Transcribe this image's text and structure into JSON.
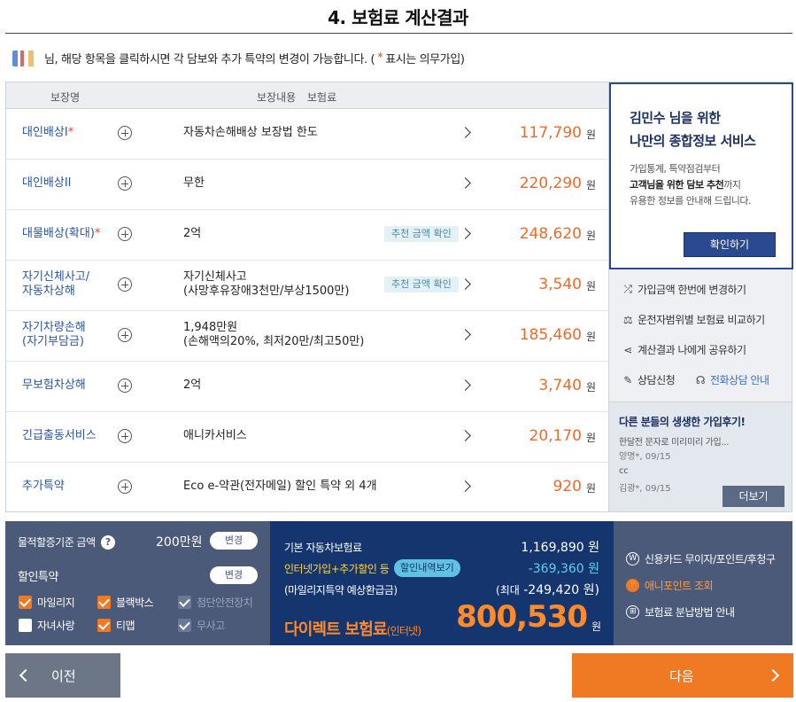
{
  "page": {
    "title": "4. 보험료 계산결과",
    "notice_prefix": "님, 해당 항목을 클릭하시면 각 담보와 추가 특약의 변경이 가능합니다. (",
    "notice_star": "*",
    "notice_suffix": "표시는 의무가입)"
  },
  "table": {
    "headers": {
      "name": "보장명",
      "coverage": "보장내용",
      "premium": "보험료"
    },
    "rows": [
      {
        "name": "대인배상I",
        "required": "*",
        "coverage": "자동차손해배상 보장법 한도",
        "coverage_sub": "",
        "badge": "",
        "premium": "117,790",
        "unit": "원"
      },
      {
        "name": "대인배상II",
        "required": "",
        "coverage": "무한",
        "coverage_sub": "",
        "badge": "",
        "premium": "220,290",
        "unit": "원"
      },
      {
        "name": "대물배상(확대)",
        "required": "*",
        "coverage": "2억",
        "coverage_sub": "",
        "badge": "추천 금액 확인",
        "premium": "248,620",
        "unit": "원"
      },
      {
        "name": "자기신체사고/",
        "name2": "자동차상해",
        "required": "",
        "coverage": "자기신체사고",
        "coverage_sub": "(사망후유장애3천만/부상1500만)",
        "badge": "추천 금액 확인",
        "premium": "3,540",
        "unit": "원"
      },
      {
        "name": "자기차량손해",
        "name2": "(자기부담금)",
        "required": "",
        "coverage": "1,948만원",
        "coverage_sub": "(손해액의20%, 최저20만/최고50만)",
        "badge": "",
        "premium": "185,460",
        "unit": "원"
      },
      {
        "name": "무보험차상해",
        "required": "",
        "coverage": "2억",
        "coverage_sub": "",
        "badge": "",
        "premium": "3,740",
        "unit": "원"
      },
      {
        "name": "긴급출동서비스",
        "required": "",
        "coverage": "애니카서비스",
        "coverage_sub": "",
        "badge": "",
        "premium": "20,170",
        "unit": "원"
      },
      {
        "name": "추가특약",
        "required": "",
        "coverage": "Eco e-약관(전자메일) 할인 특약 외 4개",
        "coverage_sub": "",
        "badge": "",
        "premium": "920",
        "unit": "원"
      }
    ]
  },
  "side": {
    "promo_line1": "김민수 님을 위한",
    "promo_line2": "나만의 종합정보 서비스",
    "promo_p1": "가입통계, 특약점검부터",
    "promo_p2_bold": "고객님을 위한 담보 추천",
    "promo_p2_rest": "까지",
    "promo_p3": "유용한 정보를 안내해 드립니다.",
    "promo_button": "확인하기",
    "links": [
      {
        "icon": "shuffle-icon",
        "label": "가입금액 한번에 변경하기"
      },
      {
        "icon": "scale-icon",
        "label": "운전자범위별 보험료 비교하기"
      },
      {
        "icon": "share-icon",
        "label": "계산결과 나에게 공유하기"
      }
    ],
    "consult_label": "상담신청",
    "phone_label": "전화상담 안내",
    "reviews_title": "다른 분들의 생생한 가입후기!",
    "review1_text": "한달전 문자로 미리미리 가입...",
    "review1_meta": "양명*, 09/15",
    "review2_text": "cc",
    "review2_meta": "김광*, 09/15",
    "more_button": "더보기"
  },
  "summary": {
    "criteria_label": "물적할증기준 금액",
    "criteria_help": "?",
    "criteria_value": "200만원",
    "change_label": "변경",
    "discount_label": "할인특약",
    "discount_change": "변경",
    "checkboxes": [
      {
        "label": "마일리지",
        "state": "checked"
      },
      {
        "label": "블랙박스",
        "state": "checked"
      },
      {
        "label": "첨단안전장치",
        "state": "disabled"
      },
      {
        "label": "자녀사랑",
        "state": "unchecked"
      },
      {
        "label": "티맵",
        "state": "checked"
      },
      {
        "label": "무사고",
        "state": "disabled"
      }
    ],
    "base_label": "기본 자동차보험료",
    "base_value": "1,169,890 원",
    "discount_line_label": "인터넷가입+추가할인 등",
    "discount_detail_pill": "할인내역보기",
    "discount_value": "-369,360 원",
    "mileage_label": "(마일리지특약 예상환급금)",
    "mileage_prefix": "(최대",
    "mileage_value": "-249,420 원)",
    "direct_label": "다이렉트 보험료",
    "direct_sub": "(인터넷)",
    "total_value": "800,530",
    "total_unit": "원"
  },
  "payment": {
    "items": [
      {
        "icon": "W",
        "label": "신용카드 무이자/포인트/후청구"
      },
      {
        "icon": "P",
        "label": "애니포인트 조회"
      },
      {
        "icon": "⊞",
        "label": "보험료 분납방법 안내"
      }
    ]
  },
  "nav": {
    "prev": "이전",
    "next": "다음"
  },
  "colors": {
    "accent": "#f07a23",
    "navy": "#15356f",
    "premium": "#ee6a2c"
  }
}
